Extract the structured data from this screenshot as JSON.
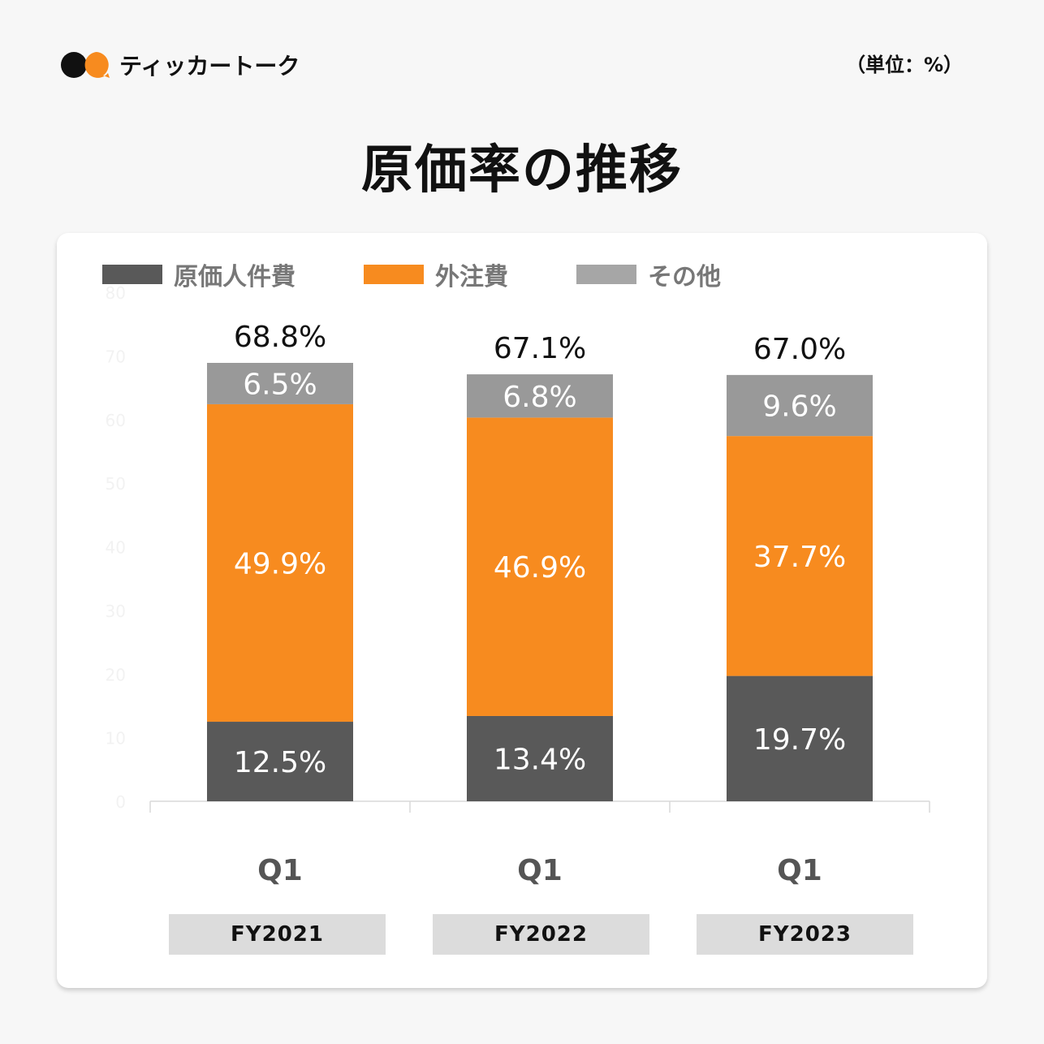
{
  "brand": {
    "name": "ティッカートーク"
  },
  "unit_label": "（単位：%）",
  "colors": {
    "labor": "#595959",
    "outsourcing": "#f78b1f",
    "other": "#999999",
    "logo_black": "#111111",
    "logo_orange": "#f78b1f"
  },
  "chart_data": {
    "type": "bar",
    "stacked": true,
    "title": "原価率の推移",
    "categories": [
      "Q1",
      "Q1",
      "Q1"
    ],
    "groups": [
      "FY2021",
      "FY2022",
      "FY2023"
    ],
    "series": [
      {
        "name": "原価人件費",
        "values": [
          12.5,
          13.4,
          19.7
        ],
        "labels": [
          "12.5%",
          "13.4%",
          "19.7%"
        ]
      },
      {
        "name": "外注費",
        "values": [
          49.9,
          46.9,
          37.7
        ],
        "labels": [
          "49.9%",
          "46.9%",
          "37.7%"
        ]
      },
      {
        "name": "その他",
        "values": [
          6.5,
          6.8,
          9.6
        ],
        "labels": [
          "6.5%",
          "6.8%",
          "9.6%"
        ]
      }
    ],
    "totals": [
      "68.8%",
      "67.1%",
      "67.0%"
    ],
    "ylim": [
      0,
      80
    ],
    "yticks": [
      "0",
      "10",
      "20",
      "30",
      "40",
      "50",
      "60",
      "70",
      "80"
    ],
    "legend_position": "top-left",
    "grid": false
  }
}
